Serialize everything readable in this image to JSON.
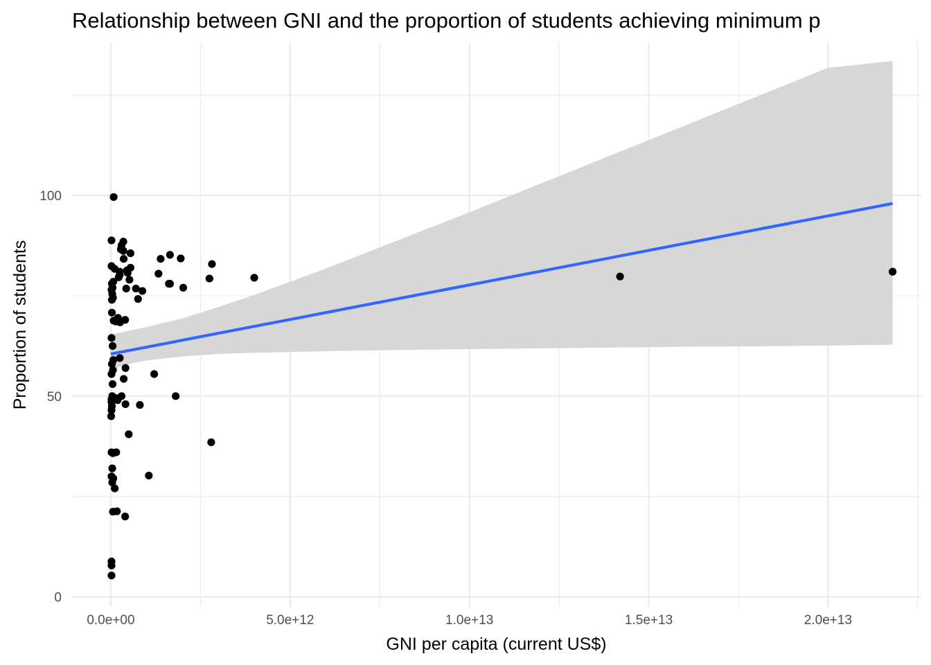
{
  "chart_data": {
    "type": "scatter",
    "title": "Relationship between GNI and the proportion of students achieving minimum p",
    "xlabel": "GNI per capita (current US$)",
    "ylabel": "Proportion of students",
    "xlim": [
      -1100000000000.0,
      22600000000000.0
    ],
    "ylim": [
      -2.5,
      138
    ],
    "x_ticks": [
      0,
      5000000000000.0,
      10000000000000.0,
      15000000000000.0,
      20000000000000.0
    ],
    "x_tick_labels": [
      "0.0e+00",
      "5.0e+12",
      "1.0e+13",
      "1.5e+13",
      "2.0e+13"
    ],
    "y_ticks": [
      0,
      50,
      100
    ],
    "y_tick_labels": [
      "0",
      "50",
      "100"
    ],
    "grid": true,
    "legend": "none",
    "colors": {
      "points": "#000000",
      "fit_line": "#3366ff",
      "ribbon": "#d5d5d5",
      "grid": "#ebebeb"
    },
    "points": [
      [
        80000000000.0,
        99.6
      ],
      [
        20000000000.0,
        88.8
      ],
      [
        350000000000.0,
        88.5
      ],
      [
        300000000000.0,
        87.6
      ],
      [
        280000000000.0,
        86.6
      ],
      [
        350000000000.0,
        86.2
      ],
      [
        550000000000.0,
        85.6
      ],
      [
        1950000000000.0,
        84.3
      ],
      [
        2820000000000.0,
        82.9
      ],
      [
        2750000000000.0,
        79.3
      ],
      [
        1650000000000.0,
        85.2
      ],
      [
        1390000000000.0,
        84.2
      ],
      [
        360000000000.0,
        84.2
      ],
      [
        20000000000.0,
        82.4
      ],
      [
        110000000000.0,
        81.7
      ],
      [
        450000000000.0,
        81.3
      ],
      [
        550000000000.0,
        82.0
      ],
      [
        250000000000.0,
        81.0
      ],
      [
        250000000000.0,
        80.2
      ],
      [
        470000000000.0,
        80.7
      ],
      [
        220000000000.0,
        79.6
      ],
      [
        520000000000.0,
        79.0
      ],
      [
        1330000000000.0,
        80.5
      ],
      [
        1620000000000.0,
        78.0
      ],
      [
        1650000000000.0,
        78.0
      ],
      [
        2020000000000.0,
        77.0
      ],
      [
        4000000000000.0,
        79.5
      ],
      [
        30000000000.0,
        78.0
      ],
      [
        70000000000.0,
        78.5
      ],
      [
        50000000000.0,
        77.0
      ],
      [
        20000000000.0,
        76.5
      ],
      [
        40000000000.0,
        75.5
      ],
      [
        430000000000.0,
        76.8
      ],
      [
        700000000000.0,
        76.8
      ],
      [
        880000000000.0,
        76.2
      ],
      [
        60000000000.0,
        74.5
      ],
      [
        30000000000.0,
        74.0
      ],
      [
        760000000000.0,
        74.2
      ],
      [
        30000000000.0,
        70.8
      ],
      [
        200000000000.0,
        69.5
      ],
      [
        80000000000.0,
        68.8
      ],
      [
        140000000000.0,
        68.6
      ],
      [
        260000000000.0,
        68.4
      ],
      [
        400000000000.0,
        69.0
      ],
      [
        20000000000.0,
        64.5
      ],
      [
        50000000000.0,
        62.5
      ],
      [
        250000000000.0,
        59.5
      ],
      [
        70000000000.0,
        59.0
      ],
      [
        30000000000.0,
        58.0
      ],
      [
        60000000000.0,
        56.5
      ],
      [
        20000000000.0,
        55.5
      ],
      [
        410000000000.0,
        57.0
      ],
      [
        1210000000000.0,
        55.5
      ],
      [
        360000000000.0,
        54.3
      ],
      [
        50000000000.0,
        53.0
      ],
      [
        40000000000.0,
        50.0
      ],
      [
        60000000000.0,
        49.5
      ],
      [
        20000000000.0,
        49.2
      ],
      [
        190000000000.0,
        49.0
      ],
      [
        300000000000.0,
        50.0
      ],
      [
        140000000000.0,
        49.5
      ],
      [
        20000000000.0,
        48.5
      ],
      [
        30000000000.0,
        47.5
      ],
      [
        1810000000000.0,
        50.0
      ],
      [
        410000000000.0,
        48.0
      ],
      [
        810000000000.0,
        47.8
      ],
      [
        20000000000.0,
        46.5
      ],
      [
        10000000000.0,
        45.0
      ],
      [
        500000000000.0,
        40.5
      ],
      [
        2800000000000.0,
        38.5
      ],
      [
        20000000000.0,
        36.0
      ],
      [
        60000000000.0,
        35.8
      ],
      [
        150000000000.0,
        36.0
      ],
      [
        40000000000.0,
        32.0
      ],
      [
        20000000000.0,
        30.0
      ],
      [
        70000000000.0,
        29.5
      ],
      [
        1060000000000.0,
        30.2
      ],
      [
        40000000000.0,
        28.5
      ],
      [
        110000000000.0,
        27.0
      ],
      [
        60000000000.0,
        21.2
      ],
      [
        170000000000.0,
        21.3
      ],
      [
        400000000000.0,
        20.0
      ],
      [
        20000000000.0,
        8.8
      ],
      [
        20000000000.0,
        7.8
      ],
      [
        20000000000.0,
        5.3
      ]
    ],
    "outlier_points": [
      [
        14200000000000.0,
        79.8
      ],
      [
        21800000000000.0,
        81.0
      ]
    ],
    "fit_line": {
      "x": [
        0.0,
        21800000000000.0
      ],
      "y": [
        60.5,
        98.0
      ]
    },
    "ribbon": {
      "x": [
        0.0,
        500000000000.0,
        1000000000000.0,
        2000000000000.0,
        3000000000000.0,
        4000000000000.0,
        6000000000000.0,
        8000000000000.0,
        10000000000000.0,
        12000000000000.0,
        14000000000000.0,
        16000000000000.0,
        18000000000000.0,
        20000000000000.0,
        21800000000000.0
      ],
      "upper": [
        65.3,
        66.3,
        67.2,
        69.4,
        72.2,
        75.2,
        81.8,
        88.8,
        95.8,
        103.0,
        110.2,
        117.4,
        124.6,
        131.8,
        133.5
      ],
      "lower": [
        56.5,
        58.0,
        58.9,
        59.9,
        60.5,
        60.8,
        61.2,
        61.5,
        61.7,
        61.9,
        62.1,
        62.3,
        62.4,
        62.6,
        62.8
      ]
    }
  }
}
